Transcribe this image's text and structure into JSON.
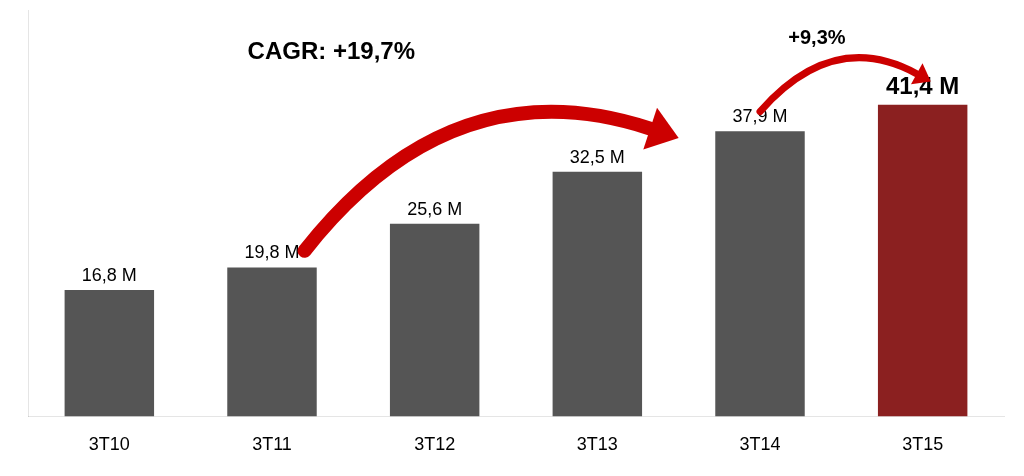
{
  "chart_data": {
    "type": "bar",
    "categories": [
      "3T10",
      "3T11",
      "3T12",
      "3T13",
      "3T14",
      "3T15"
    ],
    "values": [
      16.8,
      19.8,
      25.6,
      32.5,
      37.9,
      41.4
    ],
    "value_labels": [
      "16,8 M",
      "19,8 M",
      "25,6 M",
      "32,5 M",
      "37,9 M",
      "41,4 M"
    ],
    "data_labels": true,
    "colors": [
      "#555555",
      "#555555",
      "#555555",
      "#555555",
      "#555555",
      "#8B2020"
    ],
    "ylim": [
      0,
      54
    ],
    "tick_labels": "x",
    "grid": false,
    "annotations": [
      "CAGR: +19,7%",
      "+9,3%"
    ]
  }
}
